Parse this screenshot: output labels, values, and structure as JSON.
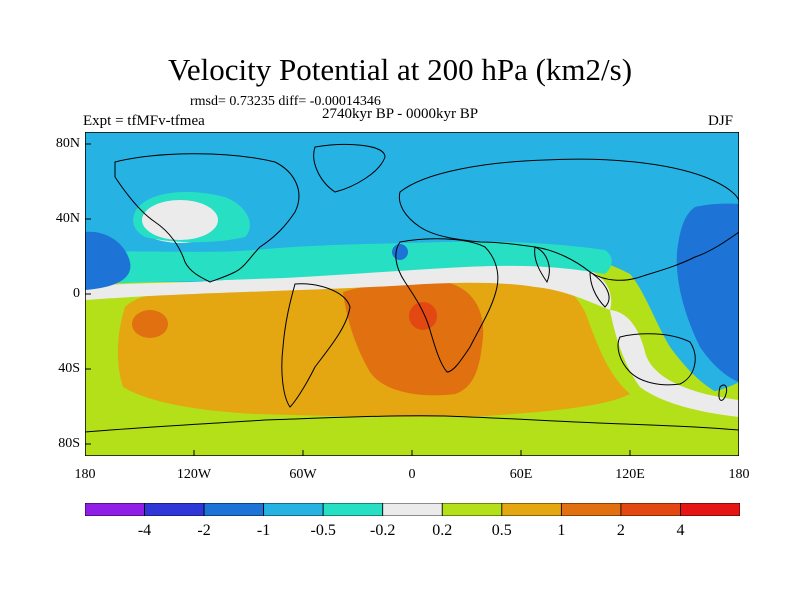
{
  "title": "Velocity Potential at 200 hPa (km2/s)",
  "stats": "rmsd= 0.73235 diff= -0.00014346",
  "experiment": "Expt = tfMFv-tfmea",
  "period": "2740kyr BP - 0000kyr BP",
  "season": "DJF",
  "lat_labels": [
    "80N",
    "40N",
    "0",
    "40S",
    "80S"
  ],
  "lon_labels": [
    "180",
    "120W",
    "60W",
    "0",
    "60E",
    "120E",
    "180"
  ],
  "colorbar": {
    "colors": [
      "#8f1ee6",
      "#2f37d9",
      "#1d73d6",
      "#27b2e4",
      "#27e0c4",
      "#ebebeb",
      "#b4e01a",
      "#e4a611",
      "#e07010",
      "#e34812",
      "#e61515"
    ],
    "labels": [
      "-4",
      "-2",
      "-1",
      "-0.5",
      "-0.2",
      "0.2",
      "0.5",
      "1",
      "2",
      "4"
    ]
  }
}
